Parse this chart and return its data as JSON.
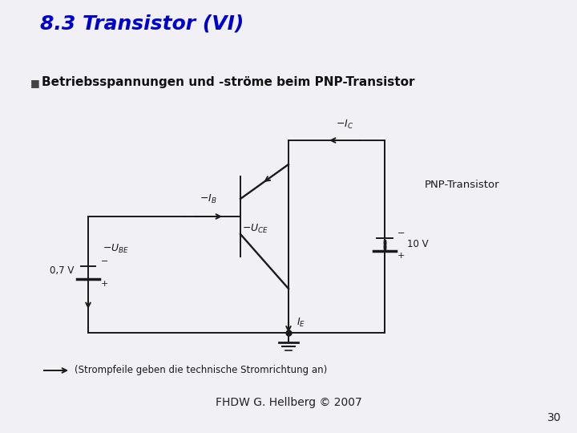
{
  "title": "8.3 Transistor (VI)",
  "title_color": "#0000CC",
  "bullet_text": "Betriebsspannungen und -ströme beim PNP-Transistor",
  "pnp_label": "PNP-Transistor",
  "footnote": "(Strompfeile geben die technische Stromrichtung an)",
  "footer": "FHDW G. Hellberg © 2007",
  "page_num": "30",
  "bg_color": "#f0f0f5",
  "circuit_color": "#1a1a1a"
}
